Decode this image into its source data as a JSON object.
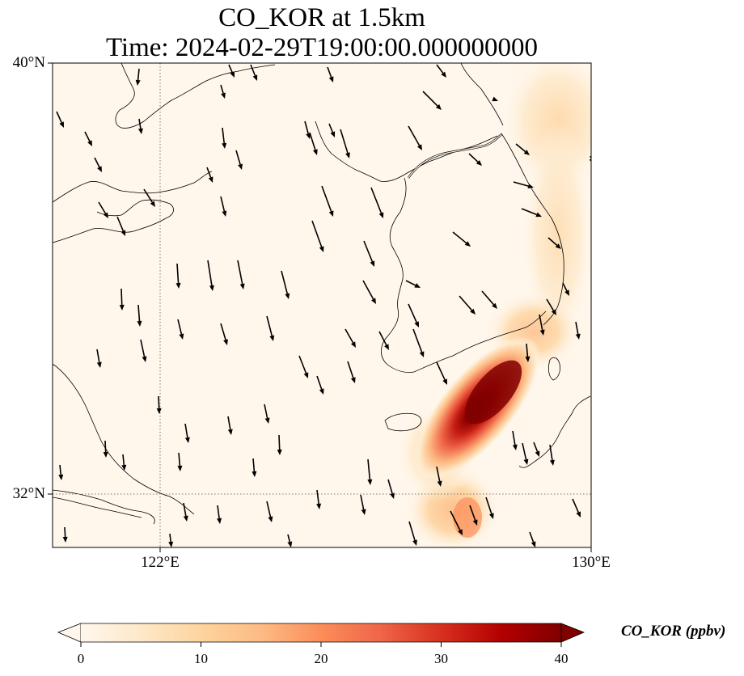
{
  "title": {
    "line1": "CO_KOR at 1.5km",
    "line2": "Time: 2024-02-29T19:00:00.000000000"
  },
  "map": {
    "lat_ticks": [
      "40°N",
      "32°N"
    ],
    "lon_ticks": [
      "122°E",
      "130°E"
    ],
    "extent": {
      "lon_min": 120,
      "lon_max": 130,
      "lat_min": 31,
      "lat_max": 40
    },
    "gridlines": "dotted",
    "field_name": "CO_KOR",
    "plume": "high values southeast of the Korean Peninsula, peak about 40 ppbv near 128.2°E, 33.8°N"
  },
  "colorbar": {
    "label": "CO_KOR (ppbv)",
    "ticks": [
      "0",
      "10",
      "20",
      "30",
      "40"
    ],
    "range": [
      0,
      40
    ],
    "colormap": "OrRd",
    "colors": [
      "#fff7ec",
      "#fee8c8",
      "#fdd49e",
      "#fdbb84",
      "#fc8d59",
      "#ef6548",
      "#d7301f",
      "#b30000",
      "#7f0000"
    ],
    "extend": "both"
  },
  "wind_vectors": "black arrows, mostly pointing south to south-southeast"
}
